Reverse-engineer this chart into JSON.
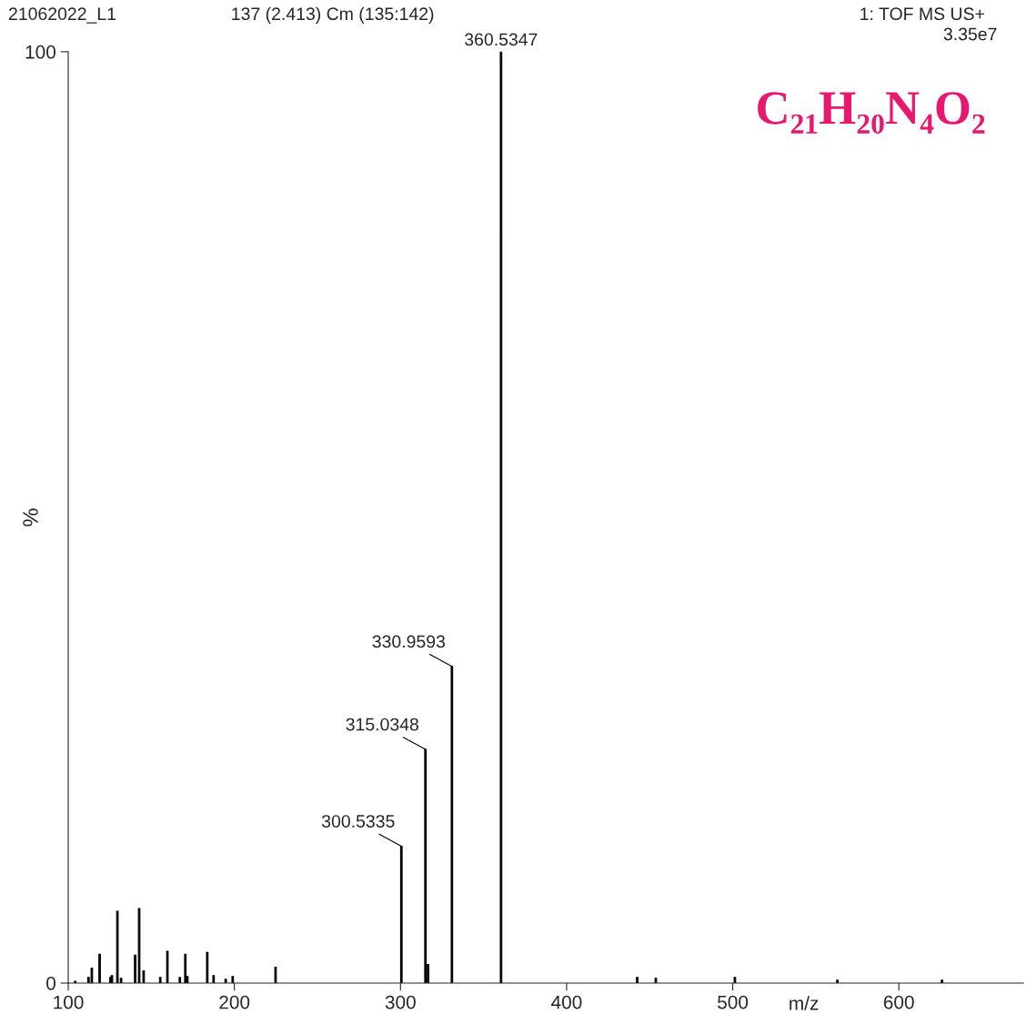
{
  "chart_data": {
    "type": "bar",
    "subtitle": "C₂₁H₂₀N₄O₂",
    "xlabel": "m/z",
    "ylabel": "%",
    "x": [
      104.2,
      112.2,
      114.2,
      118.9,
      125.4,
      126.3,
      129.6,
      131.8,
      140.3,
      142.7,
      145.4,
      155.4,
      159.7,
      167.2,
      170.5,
      171.7,
      183.7,
      187.5,
      194.8,
      199.0,
      224.8,
      300.5335,
      315.0348,
      316.6,
      330.9593,
      360.5347,
      442.5,
      453.7,
      501.3,
      563.0,
      626.0
    ],
    "values": [
      0.2,
      0.6,
      1.6,
      3.1,
      0.6,
      0.8,
      7.7,
      0.5,
      3.0,
      8.0,
      1.3,
      0.6,
      3.4,
      0.6,
      3.1,
      0.7,
      3.3,
      0.8,
      0.4,
      0.7,
      1.7,
      14.7,
      25.1,
      2.0,
      34.0,
      100,
      0.6,
      0.5,
      0.6,
      0.3,
      0.3
    ],
    "color": "#000000",
    "xlim": [
      100,
      675
    ],
    "ylim": [
      0,
      100
    ],
    "xticks": [
      100,
      200,
      300,
      400,
      500,
      600
    ],
    "yticks": [
      0,
      100
    ],
    "grid": false,
    "annotations": [
      "21062022_L1",
      "137 (2.413) Cm (135:142)",
      "1: TOF MS US+",
      "3.35e7",
      {
        "text": "300.5335",
        "x": 300.5335,
        "y": 14.7
      },
      {
        "text": "315.0348",
        "x": 315.0348,
        "y": 25.1
      },
      {
        "text": "330.9593",
        "x": 330.9593,
        "y": 34.0
      },
      {
        "text": "360.5347",
        "x": 360.5347,
        "y": 100
      }
    ]
  }
}
